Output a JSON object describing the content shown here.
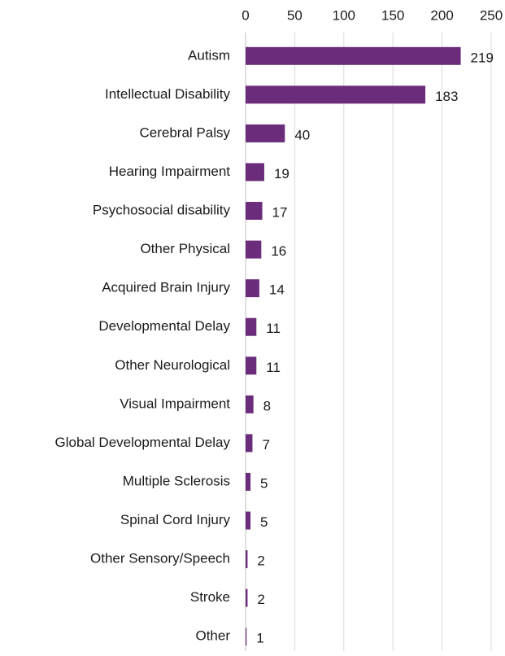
{
  "chart_data": {
    "type": "bar",
    "orientation": "horizontal",
    "categories": [
      "Autism",
      "Intellectual Disability",
      "Cerebral Palsy",
      "Hearing Impairment",
      "Psychosocial disability",
      "Other Physical",
      "Acquired Brain Injury",
      "Developmental Delay",
      "Other Neurological",
      "Visual Impairment",
      "Global Developmental Delay",
      "Multiple Sclerosis",
      "Spinal Cord Injury",
      "Other Sensory/Speech",
      "Stroke",
      "Other"
    ],
    "values": [
      219,
      183,
      40,
      19,
      17,
      16,
      14,
      11,
      11,
      8,
      7,
      5,
      5,
      2,
      2,
      1
    ],
    "color": "#6b2d7b",
    "xlim": [
      0,
      250
    ],
    "xticks": [
      0,
      50,
      100,
      150,
      200,
      250
    ],
    "grid": true
  }
}
